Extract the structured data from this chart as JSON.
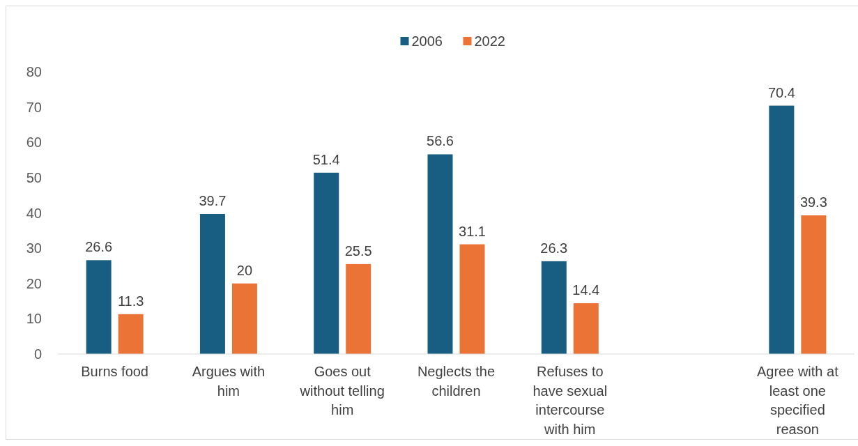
{
  "chart_data": {
    "type": "bar",
    "categories": [
      "Burns food",
      "Argues with him",
      "Goes out without telling him",
      "Neglects the children",
      "Refuses to have sexual intercourse with him",
      null,
      "Agree with at least one specified reason"
    ],
    "series": [
      {
        "name": "2006",
        "color": "#175e82",
        "values": [
          26.6,
          39.7,
          51.4,
          56.6,
          26.3,
          null,
          70.4
        ]
      },
      {
        "name": "2022",
        "color": "#eb7335",
        "values": [
          11.3,
          20,
          25.5,
          31.1,
          14.4,
          null,
          39.3
        ]
      }
    ],
    "ylim": [
      0,
      80
    ],
    "yticks": [
      0,
      10,
      20,
      30,
      40,
      50,
      60,
      70,
      80
    ],
    "grid": false,
    "legend": "top",
    "data_labels": true
  }
}
